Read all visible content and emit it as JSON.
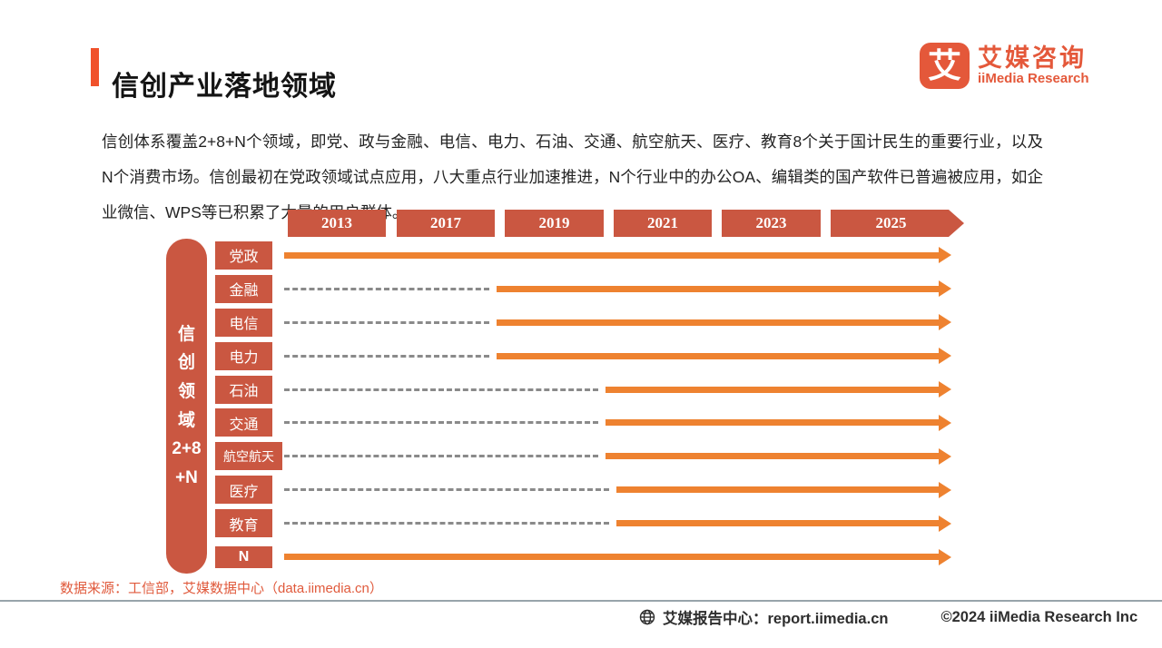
{
  "header": {
    "title": "信创产业落地领域",
    "logo": {
      "icon_char": "艾",
      "name_cn": "艾媒咨询",
      "name_en": "iiMedia Research"
    }
  },
  "intro": {
    "text": "信创体系覆盖2+8+N个领域，即党、政与金融、电信、电力、石油、交通、航空航天、医疗、教育8个关于国计民生的重要行业，以及N个消费市场。信创最初在党政领域试点应用，八大重点行业加速推进，N个行业中的办公OA、编辑类的国产软件已普遍被应用，如企业微信、WPS等已积累了大量的用户群体。"
  },
  "chart_data": {
    "type": "bar",
    "x_ticks": [
      "2013",
      "2017",
      "2019",
      "2021",
      "2023",
      "2025"
    ],
    "side_label_lines": [
      "信",
      "创",
      "领",
      "域",
      "2+8",
      "+N"
    ],
    "side_label": "信创领域2+8+N",
    "rows": [
      {
        "label": "党政",
        "start_year": 2013,
        "solid_start_pct": 0
      },
      {
        "label": "金融",
        "start_year": 2019,
        "solid_start_pct": 31.8
      },
      {
        "label": "电信",
        "start_year": 2019,
        "solid_start_pct": 31.8
      },
      {
        "label": "电力",
        "start_year": 2019,
        "solid_start_pct": 31.8
      },
      {
        "label": "石油",
        "start_year": 2021,
        "solid_start_pct": 48.2
      },
      {
        "label": "交通",
        "start_year": 2021,
        "solid_start_pct": 48.2
      },
      {
        "label": "航空航天",
        "start_year": 2021,
        "solid_start_pct": 48.2
      },
      {
        "label": "医疗",
        "start_year": 2021,
        "solid_start_pct": 49.8
      },
      {
        "label": "教育",
        "start_year": 2021,
        "solid_start_pct": 49.8
      },
      {
        "label": "N",
        "start_year": 2013,
        "solid_start_pct": 0
      }
    ],
    "colors": {
      "box": "#ca5741",
      "arrow": "#ee8230",
      "dashed": "#8a8a8a",
      "accent": "#f0512b"
    },
    "legend_position": "none",
    "grid": false
  },
  "source": {
    "text": "数据来源：工信部，艾媒数据中心（data.iimedia.cn）"
  },
  "footer": {
    "report_center": "艾媒报告中心：report.iimedia.cn",
    "copyright": "©2024 iiMedia Research Inc"
  }
}
